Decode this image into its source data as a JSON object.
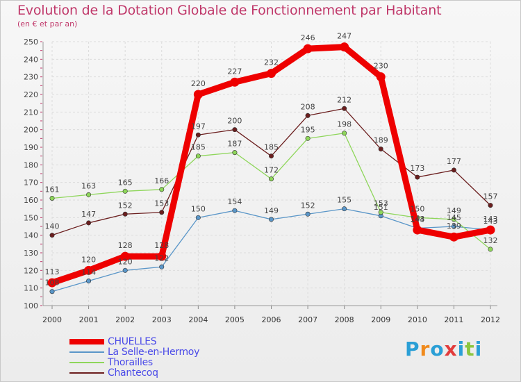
{
  "chart_data": {
    "type": "line",
    "title": "Evolution de la Dotation Globale de Fonctionnement par Habitant",
    "subtitle": "(en € et par an)",
    "xlabel": "",
    "ylabel": "",
    "ylim": [
      100,
      250
    ],
    "yticks": [
      100,
      110,
      120,
      130,
      140,
      150,
      160,
      170,
      180,
      190,
      200,
      210,
      220,
      230,
      240,
      250
    ],
    "categories": [
      "2000",
      "2001",
      "2002",
      "2003",
      "2004",
      "2005",
      "2006",
      "2007",
      "2008",
      "2009",
      "2010",
      "2011",
      "2012"
    ],
    "series": [
      {
        "name": "CHUELLES",
        "color": "#ee0000",
        "values": [
          113,
          120,
          128,
          128,
          220,
          227,
          232,
          246,
          247,
          230,
          143,
          139,
          143
        ]
      },
      {
        "name": "La Selle-en-Hermoy",
        "color": "#5a96c8",
        "values": [
          108,
          114,
          120,
          122,
          150,
          154,
          149,
          152,
          155,
          151,
          144,
          145,
          143
        ]
      },
      {
        "name": "Thorailles",
        "color": "#8ed65a",
        "values": [
          161,
          163,
          165,
          166,
          185,
          187,
          172,
          195,
          198,
          153,
          150,
          149,
          132
        ]
      },
      {
        "name": "Chantecoq",
        "color": "#6b1e1e",
        "values": [
          140,
          147,
          152,
          153,
          197,
          200,
          185,
          208,
          212,
          189,
          173,
          177,
          157
        ]
      }
    ],
    "legend_position": "bottom-left",
    "grid": true
  },
  "brand": {
    "letters": [
      "P",
      "r",
      "o",
      "x",
      "i",
      "t",
      "i"
    ],
    "colors": [
      "#2a9fd6",
      "#f08a1c",
      "#2a9fd6",
      "#e23c3c",
      "#2a9fd6",
      "#8cc63f",
      "#2a9fd6"
    ]
  }
}
